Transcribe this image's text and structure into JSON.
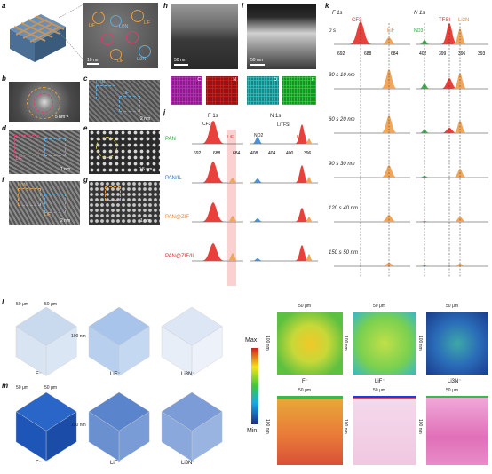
{
  "panels": {
    "a": {
      "label": "a",
      "scale": "10 nm",
      "circle_labels": [
        "LiF",
        "Li3N",
        "LiF",
        "Li3N",
        "LiF",
        "Li3N"
      ]
    },
    "b": {
      "label": "b",
      "scale": "5 nm⁻¹"
    },
    "c": {
      "label": "c",
      "annot1": "Li3N",
      "annot2": "LiF",
      "scale": "2 nm"
    },
    "d": {
      "label": "d",
      "annot": "LiF",
      "scale": "1 nm"
    },
    "e": {
      "label": "e",
      "scale": "0.5 nm"
    },
    "f": {
      "label": "f",
      "annot1": "Li3N",
      "annot2": "LiF",
      "scale": "2 nm"
    },
    "g": {
      "label": "g",
      "scale": "1 nm"
    },
    "h": {
      "label": "h",
      "scale": "50 nm",
      "maps": [
        "C",
        "N",
        "O",
        "F"
      ]
    },
    "i": {
      "label": "i",
      "scale": "50 nm"
    },
    "j": {
      "label": "j",
      "header_f": "F 1s",
      "header_n": "N 1s",
      "peak_cf3": "CF3",
      "peak_lif": "LiF",
      "peak_no2": "NO2",
      "peak_litfsi": "LiTFSI",
      "peak_li3n": "Li3N",
      "rows": [
        "PAN",
        "PAN/IL",
        "PAN@ZIF",
        "PAN@ZIF/IL"
      ],
      "ticks_f": [
        "692",
        "688",
        "684"
      ],
      "ticks_n": [
        "408",
        "404",
        "400",
        "396"
      ]
    },
    "k": {
      "label": "k",
      "header_f": "F 1s",
      "header_n": "N 1s",
      "peak_cf3": "CF3",
      "peak_lif": "LiF",
      "peak_no3": "NO3",
      "peak_tfsi": "TFSI",
      "peak_li3n": "Li3N",
      "rows": [
        "0 s",
        "30 s 10 nm",
        "60 s 20 nm",
        "90 s 30 nm",
        "120 s 40 nm",
        "150 s 50 nm"
      ],
      "ticks_f": [
        "692",
        "688",
        "684"
      ],
      "ticks_n": [
        "402",
        "399",
        "396",
        "393"
      ]
    },
    "l": {
      "label": "l",
      "species": [
        "F⁻",
        "LiF⁻",
        "Li3N⁻"
      ],
      "dim_x": "50 μm",
      "dim_y": "50 μm",
      "dim_z": "100 nm"
    },
    "m": {
      "label": "m",
      "species": [
        "F⁻",
        "LiF⁻",
        "Li3N⁻"
      ],
      "dim_x": "50 μm",
      "dim_y": "50 μm",
      "dim_z": "100 nm"
    },
    "colorbar": {
      "max": "Max",
      "min": "Min"
    },
    "maps2d": {
      "species": [
        "F⁻",
        "LiF⁻",
        "Li3N⁻"
      ],
      "dim_x": "50 μm",
      "dim_y": "100 nm"
    }
  }
}
